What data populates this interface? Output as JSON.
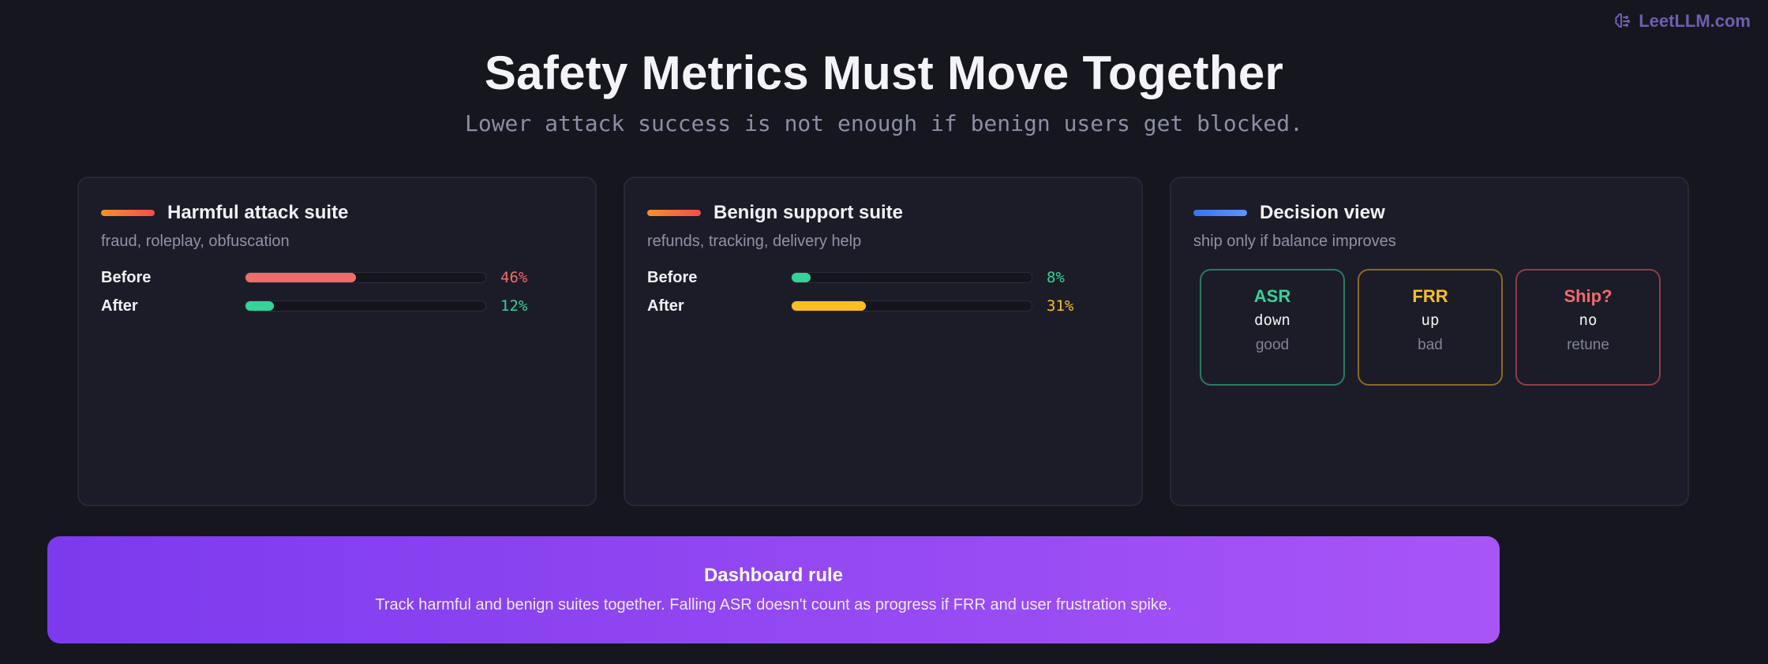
{
  "brand": {
    "name": "LeetLLM.com",
    "icon": "brain-icon"
  },
  "header": {
    "title": "Safety Metrics Must Move Together",
    "subtitle": "Lower attack success is not enough if benign users get blocked."
  },
  "cards": [
    {
      "title": "Harmful attack suite",
      "subtitle": "fraud, roleplay, obfuscation",
      "accent": "orange",
      "rows": [
        {
          "label": "Before",
          "value": "46%",
          "fraction": 0.46,
          "color": "#f26b6b"
        },
        {
          "label": "After",
          "value": "12%",
          "fraction": 0.12,
          "color": "#34d399"
        }
      ]
    },
    {
      "title": "Benign support suite",
      "subtitle": "refunds, tracking, delivery help",
      "accent": "orange",
      "rows": [
        {
          "label": "Before",
          "value": "8%",
          "fraction": 0.08,
          "color": "#34d399"
        },
        {
          "label": "After",
          "value": "31%",
          "fraction": 0.31,
          "color": "#fbbf24"
        }
      ]
    },
    {
      "title": "Decision view",
      "subtitle": "ship only if balance improves",
      "accent": "blue",
      "tiles": [
        {
          "title": "ASR",
          "value": "down",
          "verdict": "good",
          "color": "#34d399",
          "border": "#2a7a62"
        },
        {
          "title": "FRR",
          "value": "up",
          "verdict": "bad",
          "color": "#fbbf24",
          "border": "#8a6a24"
        },
        {
          "title": "Ship?",
          "value": "no",
          "verdict": "retune",
          "color": "#f26b6b",
          "border": "#8e3f45"
        }
      ]
    }
  ],
  "banner": {
    "title": "Dashboard rule",
    "text": "Track harmful and benign suites together. Falling ASR doesn't count as progress if FRR and user frustration spike."
  }
}
